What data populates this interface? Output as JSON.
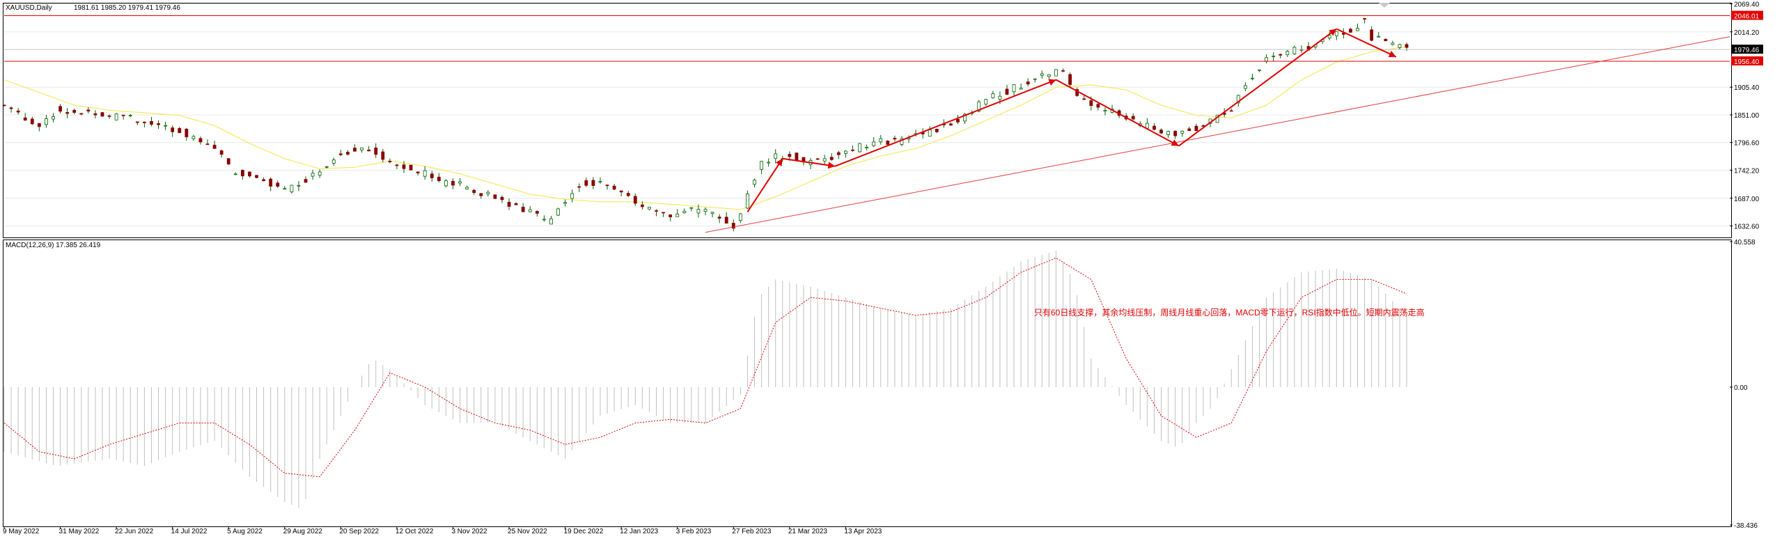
{
  "header": {
    "symbol": "XAUUSD,Daily",
    "ohlc": "1981.61 1985.20 1979.41 1979.46"
  },
  "annotation": "只有60日线支撑，其余均线压制，周线月线重心回落，MACD零下运行，RSI指数中低位。短期内震荡走高",
  "colors": {
    "bull_body": "#ffffff",
    "bear_body": "#8b0000",
    "candle_outline": "#006400",
    "ma_line": "#f5e960",
    "trend_line": "#e33b3b",
    "arrow": "#e00000",
    "level_line": "#e00000",
    "price_tag": "#e00000",
    "current_tag": "#000000",
    "macd_hist": "#c0c0c0",
    "macd_signal": "#e00000",
    "grid": "#e8e8e8"
  },
  "chart_data": [
    {
      "type": "candlestick",
      "symbol": "XAUUSD",
      "timeframe": "Daily",
      "title": "XAUUSD,Daily",
      "ylim": [
        1610,
        2070
      ],
      "y_ticks": [
        "2069.40",
        "2014.20",
        "1905.40",
        "1851.00",
        "1796.60",
        "1742.20",
        "1687.00",
        "1632.60"
      ],
      "x_tick_labels": [
        "9 May 2022",
        "31 May 2022",
        "22 Jun 2022",
        "14 Jul 2022",
        "5 Aug 2022",
        "29 Aug 2022",
        "20 Sep 2022",
        "12 Oct 2022",
        "3 Nov 2022",
        "25 Nov 2022",
        "19 Dec 2022",
        "12 Jan 2023",
        "3 Feb 2023",
        "27 Feb 2023",
        "21 Mar 2023",
        "13 Apr 2023"
      ],
      "levels": [
        {
          "name": "resistance",
          "value": 2046.01,
          "label": "2046.01"
        },
        {
          "name": "support",
          "value": 1956.4,
          "label": "1956.40"
        },
        {
          "name": "current",
          "value": 1979.46,
          "label": "1979.46"
        }
      ],
      "close_path": [
        [
          0,
          1870
        ],
        [
          5,
          1850
        ],
        [
          10,
          1830
        ],
        [
          15,
          1860
        ],
        [
          20,
          1855
        ],
        [
          25,
          1860
        ],
        [
          30,
          1848
        ],
        [
          35,
          1850
        ],
        [
          40,
          1835
        ],
        [
          45,
          1830
        ],
        [
          50,
          1820
        ],
        [
          55,
          1800
        ],
        [
          60,
          1790
        ],
        [
          65,
          1740
        ],
        [
          70,
          1730
        ],
        [
          75,
          1720
        ],
        [
          80,
          1705
        ],
        [
          85,
          1720
        ],
        [
          90,
          1745
        ],
        [
          95,
          1770
        ],
        [
          100,
          1785
        ],
        [
          105,
          1780
        ],
        [
          110,
          1760
        ],
        [
          115,
          1748
        ],
        [
          120,
          1735
        ],
        [
          125,
          1715
        ],
        [
          130,
          1715
        ],
        [
          135,
          1700
        ],
        [
          140,
          1690
        ],
        [
          145,
          1668
        ],
        [
          150,
          1665
        ],
        [
          155,
          1640
        ],
        [
          160,
          1680
        ],
        [
          165,
          1720
        ],
        [
          170,
          1715
        ],
        [
          175,
          1700
        ],
        [
          180,
          1680
        ],
        [
          185,
          1665
        ],
        [
          190,
          1650
        ],
        [
          195,
          1665
        ],
        [
          200,
          1660
        ],
        [
          205,
          1645
        ],
        [
          208,
          1635
        ],
        [
          212,
          1690
        ],
        [
          216,
          1755
        ],
        [
          220,
          1770
        ],
        [
          225,
          1770
        ],
        [
          230,
          1755
        ],
        [
          235,
          1765
        ],
        [
          240,
          1780
        ],
        [
          245,
          1790
        ],
        [
          250,
          1798
        ],
        [
          255,
          1800
        ],
        [
          260,
          1810
        ],
        [
          265,
          1820
        ],
        [
          270,
          1835
        ],
        [
          275,
          1855
        ],
        [
          280,
          1880
        ],
        [
          285,
          1895
        ],
        [
          290,
          1910
        ],
        [
          295,
          1925
        ],
        [
          300,
          1935
        ],
        [
          303,
          1930
        ],
        [
          306,
          1890
        ],
        [
          310,
          1870
        ],
        [
          315,
          1860
        ],
        [
          320,
          1845
        ],
        [
          325,
          1830
        ],
        [
          330,
          1820
        ],
        [
          335,
          1815
        ],
        [
          340,
          1825
        ],
        [
          345,
          1840
        ],
        [
          350,
          1860
        ],
        [
          355,
          1920
        ],
        [
          360,
          1960
        ],
        [
          365,
          1975
        ],
        [
          370,
          1980
        ],
        [
          375,
          1990
        ],
        [
          380,
          2010
        ],
        [
          385,
          2020
        ],
        [
          388,
          2040
        ],
        [
          390,
          2000
        ],
        [
          393,
          2005
        ],
        [
          396,
          1990
        ],
        [
          400,
          1980
        ]
      ],
      "moving_average": [
        [
          0,
          1920
        ],
        [
          10,
          1895
        ],
        [
          20,
          1870
        ],
        [
          30,
          1860
        ],
        [
          40,
          1855
        ],
        [
          50,
          1850
        ],
        [
          60,
          1830
        ],
        [
          70,
          1795
        ],
        [
          80,
          1765
        ],
        [
          90,
          1745
        ],
        [
          100,
          1748
        ],
        [
          110,
          1760
        ],
        [
          120,
          1750
        ],
        [
          130,
          1735
        ],
        [
          140,
          1715
        ],
        [
          150,
          1695
        ],
        [
          160,
          1685
        ],
        [
          170,
          1680
        ],
        [
          180,
          1680
        ],
        [
          190,
          1675
        ],
        [
          200,
          1670
        ],
        [
          210,
          1665
        ],
        [
          220,
          1690
        ],
        [
          230,
          1720
        ],
        [
          240,
          1750
        ],
        [
          250,
          1770
        ],
        [
          260,
          1785
        ],
        [
          270,
          1810
        ],
        [
          280,
          1840
        ],
        [
          290,
          1870
        ],
        [
          300,
          1905
        ],
        [
          310,
          1910
        ],
        [
          320,
          1900
        ],
        [
          330,
          1870
        ],
        [
          340,
          1850
        ],
        [
          350,
          1845
        ],
        [
          360,
          1870
        ],
        [
          370,
          1920
        ],
        [
          380,
          1955
        ],
        [
          390,
          1975
        ],
        [
          400,
          1985
        ]
      ],
      "trend_line": {
        "from": [
          200,
          1620
        ],
        "to": [
          500,
          2015
        ]
      },
      "arrows": [
        {
          "from": [
            212,
            1660
          ],
          "to": [
            222,
            1765
          ]
        },
        {
          "from": [
            222,
            1765
          ],
          "to": [
            237,
            1750
          ]
        },
        {
          "from": [
            237,
            1750
          ],
          "to": [
            300,
            1920
          ]
        },
        {
          "from": [
            300,
            1920
          ],
          "to": [
            335,
            1790
          ]
        },
        {
          "from": [
            335,
            1790
          ],
          "to": [
            380,
            2020
          ]
        },
        {
          "from": [
            380,
            2020
          ],
          "to": [
            397,
            1965
          ]
        }
      ]
    },
    {
      "type": "histogram",
      "title": "MACD(12,26,9)",
      "label": "MACD(12,26,9) 17.385 26.419",
      "ylim": [
        -38.436,
        40.558
      ],
      "y_ticks": [
        "40.558",
        "0.00",
        "-38.436"
      ],
      "macd_path": [
        [
          0,
          -18
        ],
        [
          15,
          -22
        ],
        [
          30,
          -20
        ],
        [
          40,
          -22
        ],
        [
          50,
          -18
        ],
        [
          60,
          -15
        ],
        [
          70,
          -25
        ],
        [
          80,
          -32
        ],
        [
          85,
          -34
        ],
        [
          90,
          -20
        ],
        [
          100,
          0
        ],
        [
          105,
          8
        ],
        [
          110,
          5
        ],
        [
          120,
          -5
        ],
        [
          130,
          -10
        ],
        [
          140,
          -10
        ],
        [
          150,
          -15
        ],
        [
          160,
          -20
        ],
        [
          170,
          -8
        ],
        [
          180,
          -5
        ],
        [
          190,
          -10
        ],
        [
          200,
          -10
        ],
        [
          210,
          -2
        ],
        [
          215,
          25
        ],
        [
          220,
          30
        ],
        [
          230,
          28
        ],
        [
          240,
          25
        ],
        [
          250,
          22
        ],
        [
          260,
          20
        ],
        [
          270,
          22
        ],
        [
          280,
          28
        ],
        [
          290,
          35
        ],
        [
          300,
          38
        ],
        [
          305,
          30
        ],
        [
          310,
          8
        ],
        [
          320,
          -5
        ],
        [
          330,
          -15
        ],
        [
          335,
          -17
        ],
        [
          340,
          -10
        ],
        [
          345,
          -5
        ],
        [
          350,
          5
        ],
        [
          360,
          25
        ],
        [
          370,
          32
        ],
        [
          380,
          33
        ],
        [
          390,
          30
        ],
        [
          395,
          25
        ],
        [
          400,
          20
        ]
      ],
      "signal_path": [
        [
          0,
          -10
        ],
        [
          10,
          -18
        ],
        [
          20,
          -20
        ],
        [
          30,
          -16
        ],
        [
          40,
          -13
        ],
        [
          50,
          -10
        ],
        [
          60,
          -10
        ],
        [
          70,
          -16
        ],
        [
          80,
          -24
        ],
        [
          90,
          -25
        ],
        [
          100,
          -12
        ],
        [
          110,
          4
        ],
        [
          120,
          0
        ],
        [
          130,
          -6
        ],
        [
          140,
          -10
        ],
        [
          150,
          -12
        ],
        [
          160,
          -16
        ],
        [
          170,
          -14
        ],
        [
          180,
          -10
        ],
        [
          190,
          -9
        ],
        [
          200,
          -10
        ],
        [
          210,
          -6
        ],
        [
          220,
          18
        ],
        [
          230,
          25
        ],
        [
          240,
          24
        ],
        [
          250,
          22
        ],
        [
          260,
          20
        ],
        [
          270,
          21
        ],
        [
          280,
          25
        ],
        [
          290,
          32
        ],
        [
          300,
          36
        ],
        [
          310,
          30
        ],
        [
          320,
          8
        ],
        [
          330,
          -8
        ],
        [
          340,
          -14
        ],
        [
          350,
          -10
        ],
        [
          360,
          10
        ],
        [
          370,
          25
        ],
        [
          380,
          30
        ],
        [
          390,
          30
        ],
        [
          400,
          26
        ]
      ]
    }
  ]
}
